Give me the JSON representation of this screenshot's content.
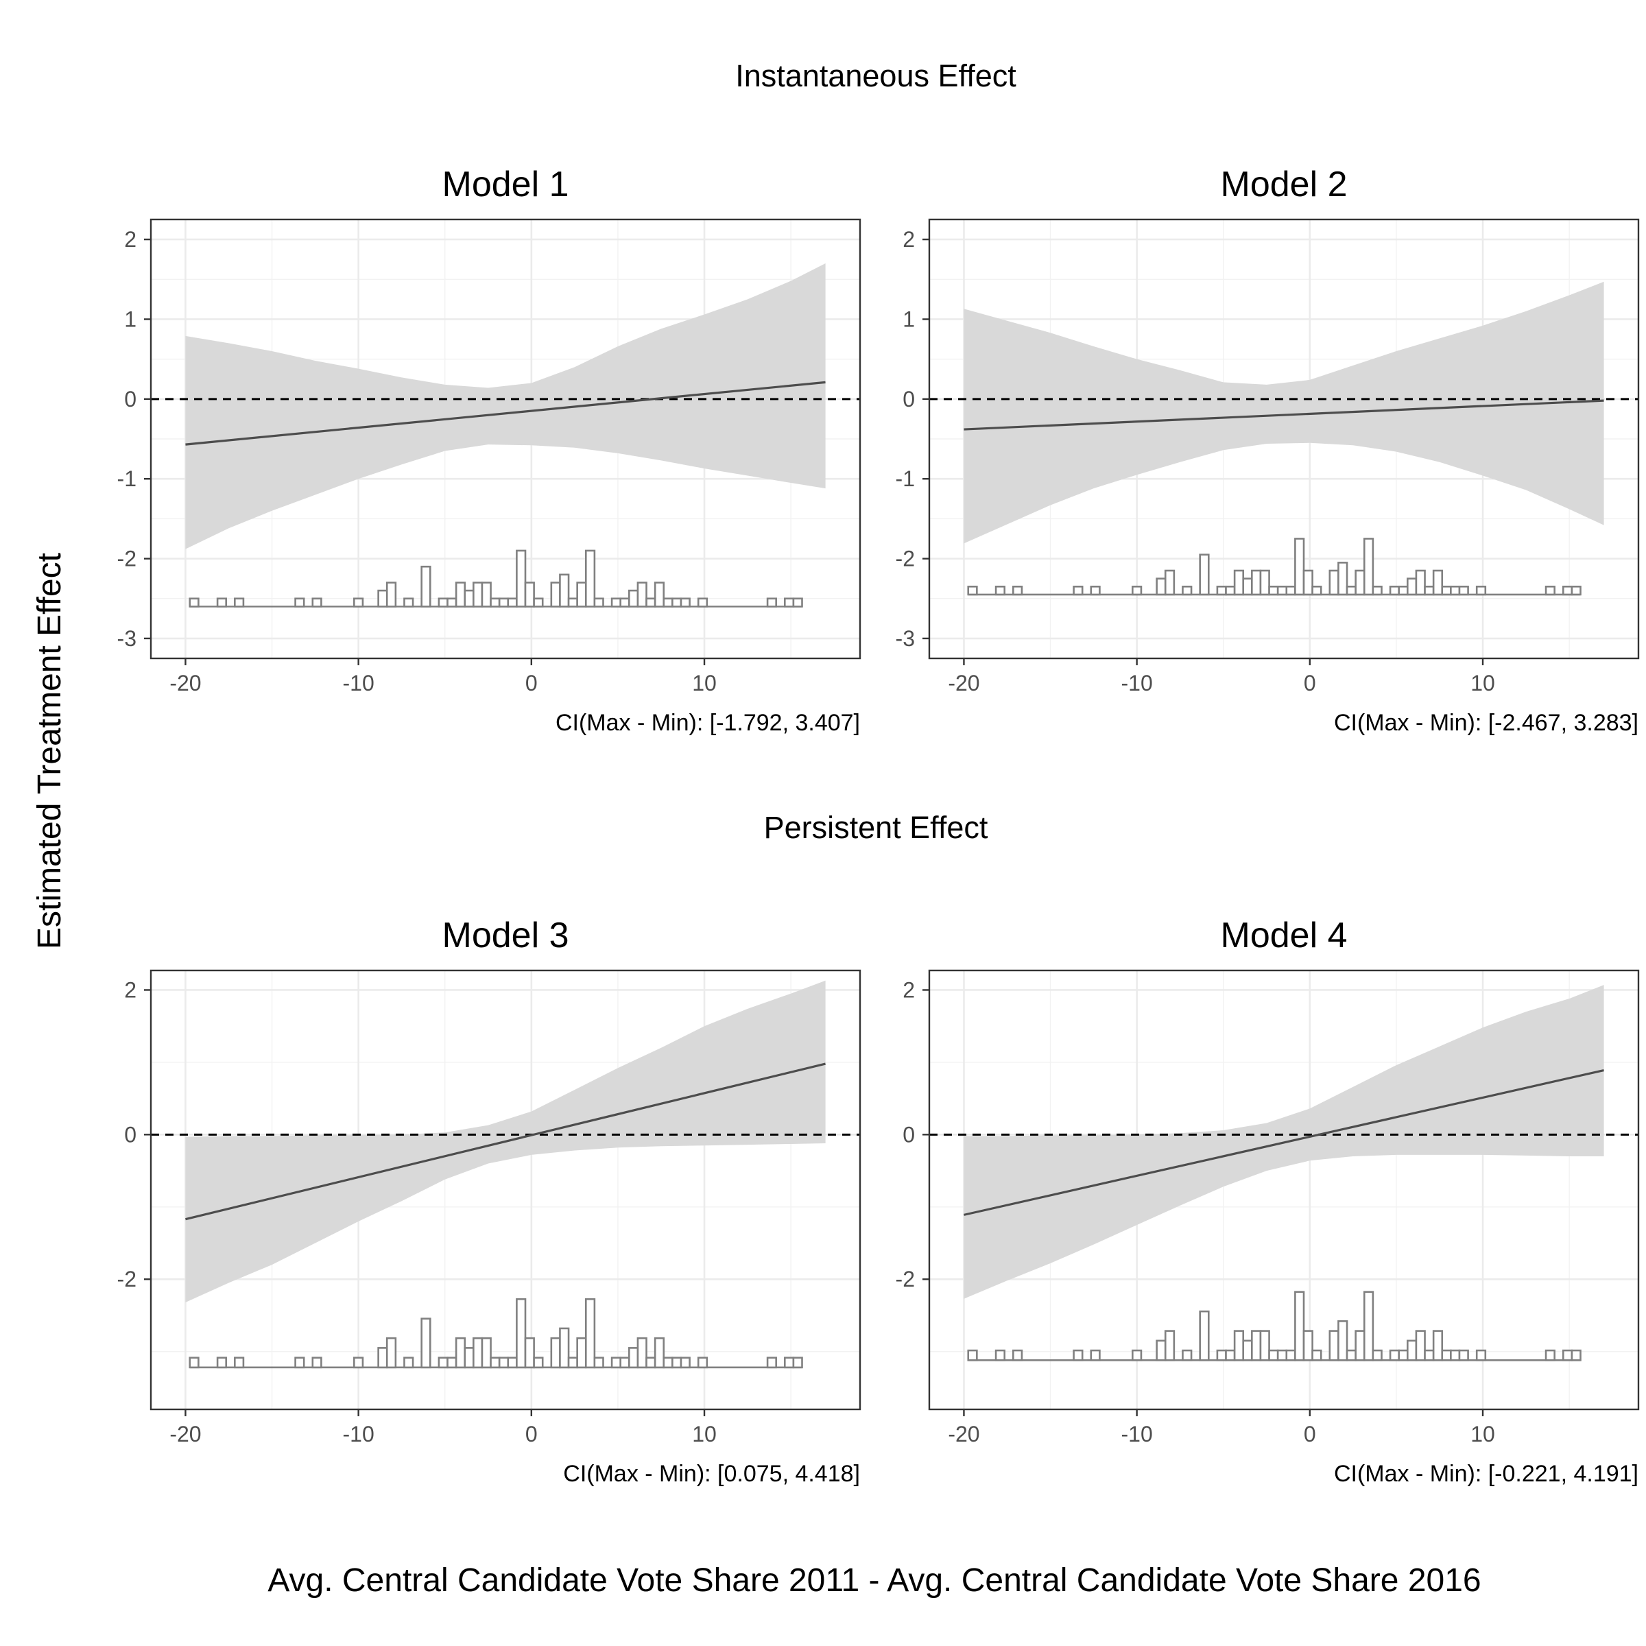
{
  "figure": {
    "section_titles": [
      "Instantaneous Effect",
      "Persistent Effect"
    ],
    "ylabel": "Estimated Treatment Effect",
    "xlabel": "Avg. Central Candidate Vote Share 2011 - Avg. Central Candidate Vote Share 2016"
  },
  "chart_data": [
    {
      "type": "line",
      "title": "Model 1",
      "section": "Instantaneous Effect",
      "xlim": [
        -22,
        19
      ],
      "ylim": [
        -3.25,
        2.25
      ],
      "xticks": [
        -20,
        -10,
        0,
        10
      ],
      "yticks": [
        -3,
        -2,
        -1,
        0,
        1,
        2
      ],
      "reference_line": 0,
      "grid": true,
      "line": {
        "x": [
          -20,
          17
        ],
        "y": [
          -0.57,
          0.21
        ]
      },
      "band": {
        "x": [
          -20,
          -17.5,
          -15,
          -12.5,
          -10,
          -7.5,
          -5,
          -2.5,
          0,
          2.5,
          5,
          7.5,
          10,
          12.5,
          15,
          17
        ],
        "lower": [
          -1.88,
          -1.62,
          -1.4,
          -1.2,
          -1.0,
          -0.82,
          -0.65,
          -0.57,
          -0.58,
          -0.61,
          -0.68,
          -0.77,
          -0.87,
          -0.96,
          -1.05,
          -1.12
        ],
        "upper": [
          0.79,
          0.7,
          0.6,
          0.48,
          0.38,
          0.27,
          0.18,
          0.14,
          0.2,
          0.4,
          0.66,
          0.88,
          1.06,
          1.25,
          1.48,
          1.7
        ]
      },
      "histogram": {
        "baseline": -2.6,
        "scale": 0.1,
        "bins_x": [
          -19.5,
          -17.9,
          -16.9,
          -13.4,
          -12.4,
          -10.0,
          -8.6,
          -8.1,
          -7.1,
          -6.1,
          -5.1,
          -4.6,
          -4.1,
          -3.6,
          -3.1,
          -2.6,
          -2.1,
          -1.6,
          -1.1,
          -0.6,
          -0.1,
          0.4,
          1.4,
          1.9,
          2.4,
          2.9,
          3.4,
          3.9,
          4.9,
          5.4,
          5.9,
          6.4,
          6.9,
          7.4,
          7.9,
          8.4,
          8.9,
          9.9,
          13.9,
          14.9,
          15.4
        ],
        "counts": [
          1,
          1,
          1,
          1,
          1,
          1,
          2,
          3,
          1,
          5,
          1,
          1,
          3,
          2,
          3,
          3,
          1,
          1,
          1,
          7,
          3,
          1,
          3,
          4,
          1,
          3,
          7,
          1,
          1,
          1,
          2,
          3,
          1,
          3,
          1,
          1,
          1,
          1,
          1,
          1,
          1
        ]
      },
      "ci_note": "CI(Max - Min): [-1.792, 3.407]"
    },
    {
      "type": "line",
      "title": "Model 2",
      "section": "Instantaneous Effect",
      "xlim": [
        -22,
        19
      ],
      "ylim": [
        -3.25,
        2.25
      ],
      "xticks": [
        -20,
        -10,
        0,
        10
      ],
      "yticks": [
        -3,
        -2,
        -1,
        0,
        1,
        2
      ],
      "reference_line": 0,
      "grid": true,
      "line": {
        "x": [
          -20,
          17
        ],
        "y": [
          -0.38,
          -0.02
        ]
      },
      "band": {
        "x": [
          -20,
          -17.5,
          -15,
          -12.5,
          -10,
          -7.5,
          -5,
          -2.5,
          0,
          2.5,
          5,
          7.5,
          10,
          12.5,
          15,
          17
        ],
        "lower": [
          -1.81,
          -1.57,
          -1.33,
          -1.12,
          -0.95,
          -0.79,
          -0.64,
          -0.56,
          -0.55,
          -0.58,
          -0.66,
          -0.79,
          -0.96,
          -1.14,
          -1.38,
          -1.58
        ],
        "upper": [
          1.13,
          0.98,
          0.83,
          0.66,
          0.5,
          0.36,
          0.21,
          0.18,
          0.24,
          0.42,
          0.6,
          0.76,
          0.92,
          1.1,
          1.3,
          1.47
        ]
      },
      "histogram": {
        "baseline": -2.45,
        "scale": 0.1,
        "bins_x": [
          -19.5,
          -17.9,
          -16.9,
          -13.4,
          -12.4,
          -10.0,
          -8.6,
          -8.1,
          -7.1,
          -6.1,
          -5.1,
          -4.6,
          -4.1,
          -3.6,
          -3.1,
          -2.6,
          -2.1,
          -1.6,
          -1.1,
          -0.6,
          -0.1,
          0.4,
          1.4,
          1.9,
          2.4,
          2.9,
          3.4,
          3.9,
          4.9,
          5.4,
          5.9,
          6.4,
          6.9,
          7.4,
          7.9,
          8.4,
          8.9,
          9.9,
          13.9,
          14.9,
          15.4
        ],
        "counts": [
          1,
          1,
          1,
          1,
          1,
          1,
          2,
          3,
          1,
          5,
          1,
          1,
          3,
          2,
          3,
          3,
          1,
          1,
          1,
          7,
          3,
          1,
          3,
          4,
          1,
          3,
          7,
          1,
          1,
          1,
          2,
          3,
          1,
          3,
          1,
          1,
          1,
          1,
          1,
          1,
          1
        ]
      },
      "ci_note": "CI(Max - Min): [-2.467, 3.283]"
    },
    {
      "type": "line",
      "title": "Model 3",
      "section": "Persistent Effect",
      "xlim": [
        -22,
        19
      ],
      "ylim": [
        -3.8,
        2.27
      ],
      "xticks": [
        -20,
        -10,
        0,
        10
      ],
      "yticks": [
        -2,
        0,
        2
      ],
      "reference_line": 0,
      "grid": true,
      "line": {
        "x": [
          -20,
          17
        ],
        "y": [
          -1.17,
          0.98
        ]
      },
      "band": {
        "x": [
          -20,
          -17.5,
          -15,
          -12.5,
          -10,
          -7.5,
          -5,
          -2.5,
          0,
          2.5,
          5,
          7.5,
          10,
          12.5,
          15,
          17
        ],
        "lower": [
          -2.32,
          -2.05,
          -1.8,
          -1.5,
          -1.2,
          -0.92,
          -0.62,
          -0.4,
          -0.28,
          -0.22,
          -0.18,
          -0.16,
          -0.15,
          -0.14,
          -0.13,
          -0.12
        ],
        "upper": [
          -0.03,
          -0.02,
          -0.02,
          -0.01,
          -0.01,
          0.0,
          0.03,
          0.13,
          0.32,
          0.62,
          0.92,
          1.2,
          1.5,
          1.74,
          1.95,
          2.13
        ]
      },
      "histogram": {
        "baseline": -3.22,
        "scale": 0.135,
        "bins_x": [
          -19.5,
          -17.9,
          -16.9,
          -13.4,
          -12.4,
          -10.0,
          -8.6,
          -8.1,
          -7.1,
          -6.1,
          -5.1,
          -4.6,
          -4.1,
          -3.6,
          -3.1,
          -2.6,
          -2.1,
          -1.6,
          -1.1,
          -0.6,
          -0.1,
          0.4,
          1.4,
          1.9,
          2.4,
          2.9,
          3.4,
          3.9,
          4.9,
          5.4,
          5.9,
          6.4,
          6.9,
          7.4,
          7.9,
          8.4,
          8.9,
          9.9,
          13.9,
          14.9,
          15.4
        ],
        "counts": [
          1,
          1,
          1,
          1,
          1,
          1,
          2,
          3,
          1,
          5,
          1,
          1,
          3,
          2,
          3,
          3,
          1,
          1,
          1,
          7,
          3,
          1,
          3,
          4,
          1,
          3,
          7,
          1,
          1,
          1,
          2,
          3,
          1,
          3,
          1,
          1,
          1,
          1,
          1,
          1,
          1
        ]
      },
      "ci_note": "CI(Max - Min): [0.075, 4.418]"
    },
    {
      "type": "line",
      "title": "Model 4",
      "section": "Persistent Effect",
      "xlim": [
        -22,
        19
      ],
      "ylim": [
        -3.8,
        2.27
      ],
      "xticks": [
        -20,
        -10,
        0,
        10
      ],
      "yticks": [
        -2,
        0,
        2
      ],
      "reference_line": 0,
      "grid": true,
      "line": {
        "x": [
          -20,
          17
        ],
        "y": [
          -1.11,
          0.89
        ]
      },
      "band": {
        "x": [
          -20,
          -17.5,
          -15,
          -12.5,
          -10,
          -7.5,
          -5,
          -2.5,
          0,
          2.5,
          5,
          7.5,
          10,
          12.5,
          15,
          17
        ],
        "lower": [
          -2.27,
          -2.02,
          -1.78,
          -1.52,
          -1.25,
          -0.98,
          -0.72,
          -0.5,
          -0.36,
          -0.3,
          -0.28,
          -0.28,
          -0.28,
          -0.29,
          -0.3,
          -0.3
        ],
        "upper": [
          -0.02,
          -0.02,
          -0.01,
          -0.01,
          0.0,
          0.02,
          0.06,
          0.16,
          0.36,
          0.66,
          0.96,
          1.22,
          1.48,
          1.7,
          1.88,
          2.07
        ]
      },
      "histogram": {
        "baseline": -3.12,
        "scale": 0.135,
        "bins_x": [
          -19.5,
          -17.9,
          -16.9,
          -13.4,
          -12.4,
          -10.0,
          -8.6,
          -8.1,
          -7.1,
          -6.1,
          -5.1,
          -4.6,
          -4.1,
          -3.6,
          -3.1,
          -2.6,
          -2.1,
          -1.6,
          -1.1,
          -0.6,
          -0.1,
          0.4,
          1.4,
          1.9,
          2.4,
          2.9,
          3.4,
          3.9,
          4.9,
          5.4,
          5.9,
          6.4,
          6.9,
          7.4,
          7.9,
          8.4,
          8.9,
          9.9,
          13.9,
          14.9,
          15.4
        ],
        "counts": [
          1,
          1,
          1,
          1,
          1,
          1,
          2,
          3,
          1,
          5,
          1,
          1,
          3,
          2,
          3,
          3,
          1,
          1,
          1,
          7,
          3,
          1,
          3,
          4,
          1,
          3,
          7,
          1,
          1,
          1,
          2,
          3,
          1,
          3,
          1,
          1,
          1,
          1,
          1,
          1,
          1
        ]
      },
      "ci_note": "CI(Max - Min): [-0.221, 4.191]"
    }
  ]
}
